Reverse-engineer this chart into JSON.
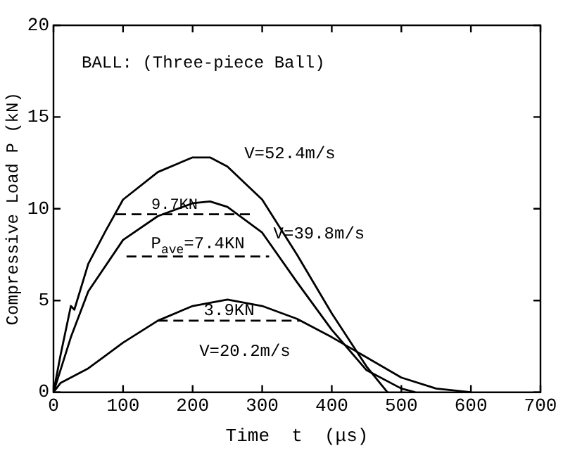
{
  "chart_data": {
    "type": "line",
    "xlabel": "Time  t  (μs)",
    "ylabel": "Compressive Load P (kN)",
    "xlim": [
      0,
      700
    ],
    "ylim": [
      0,
      20
    ],
    "xticks": [
      0,
      100,
      200,
      300,
      400,
      500,
      600,
      700
    ],
    "yticks": [
      0,
      5,
      10,
      15,
      20
    ],
    "grid": false,
    "legend": false,
    "marker": "none",
    "line_style": "solid",
    "annotations": [
      "BALL: (Three-piece Ball)"
    ],
    "series": [
      {
        "name": "V=52.4m/s",
        "color": "#000000",
        "x": [
          0,
          10,
          25,
          30,
          50,
          75,
          100,
          150,
          200,
          225,
          250,
          300,
          350,
          400,
          450,
          480
        ],
        "values": [
          0,
          2,
          4.7,
          4.5,
          7,
          8.8,
          10.5,
          12,
          12.8,
          12.8,
          12.3,
          10.5,
          7.5,
          4.3,
          1.4,
          0
        ]
      },
      {
        "name": "V=39.8m/s",
        "color": "#000000",
        "x": [
          0,
          25,
          50,
          100,
          150,
          200,
          225,
          250,
          300,
          350,
          400,
          450,
          500,
          520
        ],
        "values": [
          0,
          3,
          5.5,
          8.3,
          9.6,
          10.3,
          10.4,
          10.1,
          8.7,
          6,
          3.4,
          1.2,
          0.2,
          0
        ]
      },
      {
        "name": "V=20.2m/s",
        "color": "#000000",
        "x": [
          0,
          10,
          50,
          100,
          150,
          200,
          250,
          300,
          350,
          400,
          450,
          500,
          550,
          600
        ],
        "values": [
          0,
          0.5,
          1.3,
          2.7,
          3.9,
          4.7,
          5.05,
          4.7,
          4,
          3,
          1.9,
          0.8,
          0.2,
          0
        ]
      },
      {
        "name": "9.7KN",
        "color": "#000000",
        "line_style": "dashed",
        "x": [
          90,
          285
        ],
        "values": [
          9.7,
          9.7
        ]
      },
      {
        "name": "P$_{ave}$=7.4KN",
        "color": "#000000",
        "line_style": "dashed",
        "x": [
          105,
          310
        ],
        "values": [
          7.4,
          7.4
        ]
      },
      {
        "name": "3.9KN",
        "color": "#000000",
        "line_style": "dashed",
        "x": [
          150,
          355
        ],
        "values": [
          3.9,
          3.9
        ]
      }
    ]
  }
}
